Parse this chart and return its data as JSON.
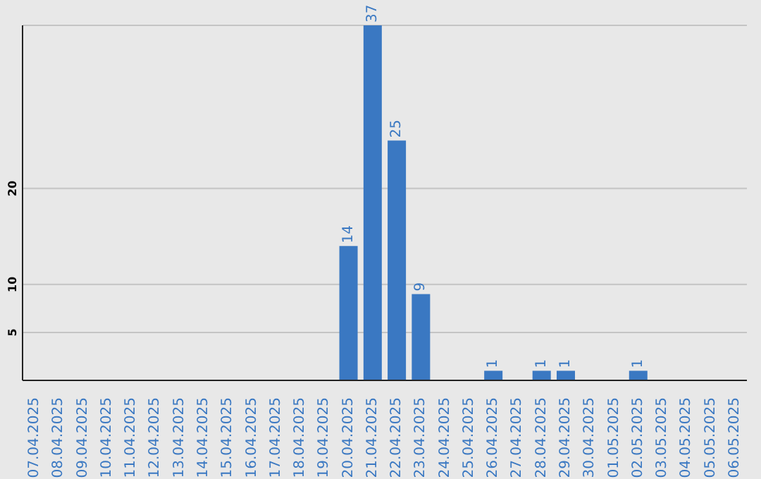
{
  "chart_data": {
    "type": "bar",
    "categories": [
      "07.04.2025",
      "08.04.2025",
      "09.04.2025",
      "10.04.2025",
      "11.04.2025",
      "12.04.2025",
      "13.04.2025",
      "14.04.2025",
      "15.04.2025",
      "16.04.2025",
      "17.04.2025",
      "18.04.2025",
      "19.04.2025",
      "20.04.2025",
      "21.04.2025",
      "22.04.2025",
      "23.04.2025",
      "24.04.2025",
      "25.04.2025",
      "26.04.2025",
      "27.04.2025",
      "28.04.2025",
      "29.04.2025",
      "30.04.2025",
      "01.05.2025",
      "02.05.2025",
      "03.05.2025",
      "04.05.2025",
      "05.05.2025",
      "06.05.2025"
    ],
    "values": [
      0,
      0,
      0,
      0,
      0,
      0,
      0,
      0,
      0,
      0,
      0,
      0,
      0,
      14,
      37,
      25,
      9,
      0,
      0,
      1,
      0,
      1,
      1,
      0,
      0,
      1,
      0,
      0,
      0,
      0
    ],
    "value_labels": [
      null,
      null,
      null,
      null,
      null,
      null,
      null,
      null,
      null,
      null,
      null,
      null,
      null,
      "14",
      "37",
      "25",
      "9",
      null,
      null,
      "1",
      null,
      "1",
      "1",
      null,
      null,
      "1",
      null,
      null,
      null,
      null
    ],
    "color": "#3a78c2",
    "ylim": [
      0,
      37
    ],
    "yticks": [
      5,
      10,
      20
    ],
    "grid": "y"
  }
}
